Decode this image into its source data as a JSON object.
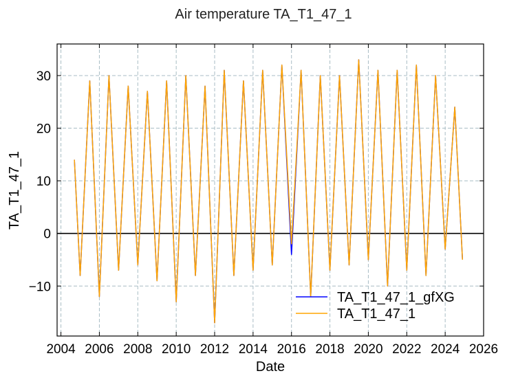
{
  "chart_data": {
    "type": "line",
    "title": "Air temperature TA_T1_47_1",
    "xlabel": "Date",
    "ylabel": "TA_T1_47_1",
    "xlim": [
      2003.8,
      2026.0
    ],
    "ylim": [
      -19.5,
      36
    ],
    "x_ticks": [
      2004,
      2006,
      2008,
      2010,
      2012,
      2014,
      2016,
      2018,
      2020,
      2022,
      2024,
      2026
    ],
    "x_tick_labels": [
      "2004",
      "2006",
      "2008",
      "2010",
      "2012",
      "2014",
      "2016",
      "2018",
      "2020",
      "2022",
      "2024",
      "2026"
    ],
    "y_ticks": [
      -10,
      0,
      10,
      20,
      30
    ],
    "y_tick_labels": [
      "−10",
      "0",
      "10",
      "20",
      "30"
    ],
    "grid": true,
    "zero_line": true,
    "legend_position": "lower-right",
    "series": [
      {
        "name": "TA_T1_47_1_gfXG",
        "color": "#0000ff",
        "x": [
          2004.7,
          2005.0,
          2005.5,
          2006.0,
          2006.5,
          2007.0,
          2007.5,
          2008.0,
          2008.5,
          2009.0,
          2009.5,
          2010.0,
          2010.5,
          2011.0,
          2011.5,
          2012.0,
          2012.5,
          2013.0,
          2013.5,
          2014.0,
          2014.5,
          2015.0,
          2015.5,
          2016.0,
          2016.5,
          2017.0,
          2017.5,
          2018.0,
          2018.5,
          2019.0,
          2019.5,
          2020.0,
          2020.5,
          2021.0,
          2021.5,
          2022.0,
          2022.5,
          2023.0,
          2023.5,
          2024.0,
          2024.5,
          2024.9
        ],
        "y": [
          14,
          -8,
          29,
          -12,
          30,
          -7,
          28,
          -6,
          27,
          -9,
          29,
          -13,
          30,
          -8,
          28,
          -17,
          31,
          -8,
          29,
          -7,
          31,
          -6,
          32,
          -4,
          31,
          -12,
          30,
          -7,
          30,
          -6,
          33,
          -5,
          31,
          -10,
          31,
          -7,
          32,
          -8,
          30,
          -3,
          24,
          -5
        ]
      },
      {
        "name": "TA_T1_47_1",
        "color": "#ffa500",
        "x": [
          2004.7,
          2005.0,
          2005.5,
          2006.0,
          2006.5,
          2007.0,
          2007.5,
          2008.0,
          2008.5,
          2009.0,
          2009.5,
          2010.0,
          2010.5,
          2011.0,
          2011.5,
          2012.0,
          2012.5,
          2013.0,
          2013.5,
          2014.0,
          2014.5,
          2015.0,
          2015.5,
          2016.0,
          2016.5,
          2017.0,
          2017.5,
          2018.0,
          2018.5,
          2019.0,
          2019.5,
          2020.0,
          2020.5,
          2021.0,
          2021.5,
          2022.0,
          2022.5,
          2023.0,
          2023.5,
          2024.0,
          2024.5,
          2024.9
        ],
        "y": [
          14,
          -8,
          29,
          -12,
          30,
          -7,
          28,
          -6,
          27,
          -9,
          29,
          -13,
          30,
          -8,
          28,
          -17,
          31,
          -8,
          29,
          -7,
          31,
          -6,
          32,
          -2,
          31,
          -12,
          30,
          -7,
          30,
          -6,
          33,
          -5,
          31,
          -10,
          31,
          -7,
          32,
          -8,
          30,
          -3,
          24,
          -5
        ]
      }
    ]
  }
}
